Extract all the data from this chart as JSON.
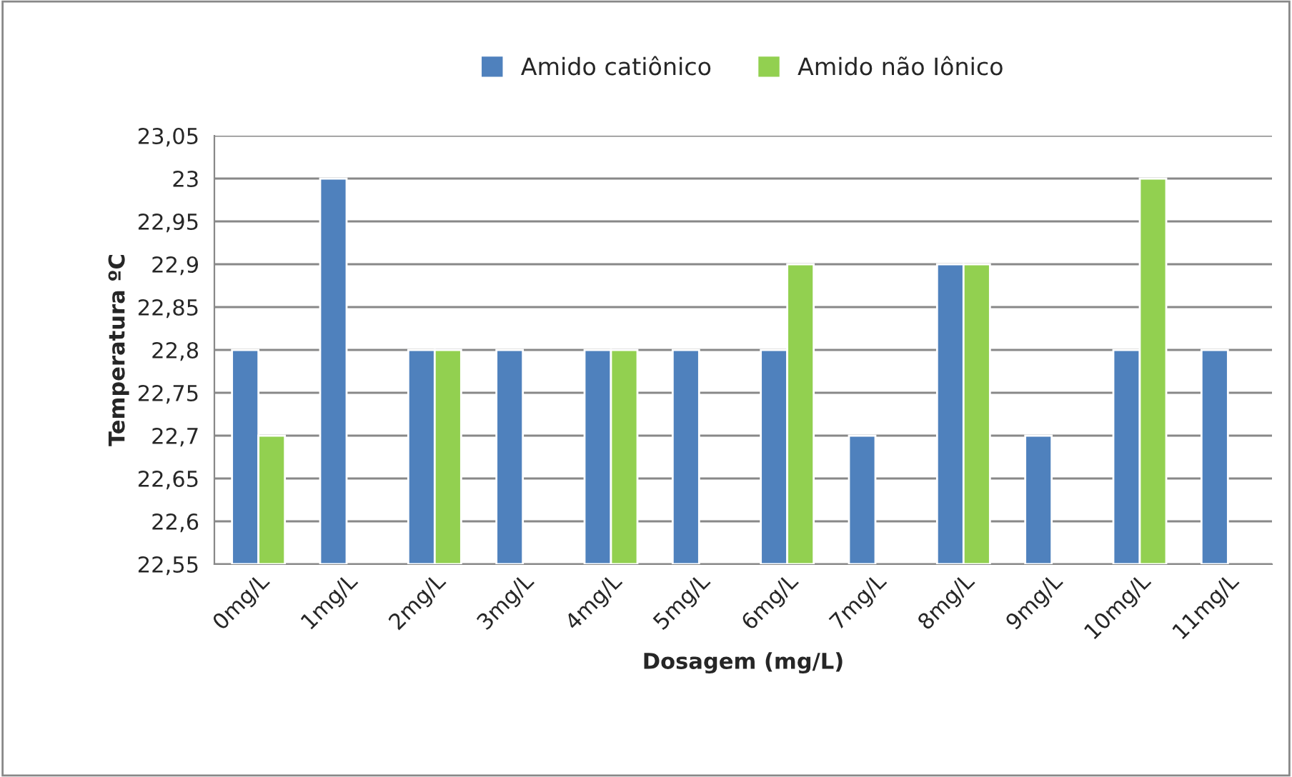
{
  "chart_data": {
    "type": "bar",
    "xlabel": "Dosagem (mg/L)",
    "ylabel": "Temperatura ºC",
    "categories": [
      "0mg/L",
      "1mg/L",
      "2mg/L",
      "3mg/L",
      "4mg/L",
      "5mg/L",
      "6mg/L",
      "7mg/L",
      "8mg/L",
      "9mg/L",
      "10mg/L",
      "11mg/L"
    ],
    "series": [
      {
        "name": "Amido catiônico",
        "color": "#4f81bd",
        "values": [
          22.8,
          23,
          22.8,
          22.8,
          22.8,
          22.8,
          22.8,
          22.7,
          22.9,
          22.7,
          22.8,
          22.8
        ]
      },
      {
        "name": "Amido não Iônico",
        "color": "#92d050",
        "values": [
          22.7,
          null,
          22.8,
          null,
          22.8,
          null,
          22.9,
          null,
          22.9,
          null,
          23,
          null
        ]
      }
    ],
    "ylim": [
      22.55,
      23.05
    ],
    "yticks": [
      {
        "value": 22.55,
        "label": "22,55"
      },
      {
        "value": 22.6,
        "label": "22,6"
      },
      {
        "value": 22.65,
        "label": "22,65"
      },
      {
        "value": 22.7,
        "label": "22,7"
      },
      {
        "value": 22.75,
        "label": "22,75"
      },
      {
        "value": 22.8,
        "label": "22,8"
      },
      {
        "value": 22.85,
        "label": "22,85"
      },
      {
        "value": 22.9,
        "label": "22,9"
      },
      {
        "value": 22.95,
        "label": "22,95"
      },
      {
        "value": 23,
        "label": "23"
      },
      {
        "value": 23.05,
        "label": "23,05"
      }
    ],
    "grid": "y",
    "legend": "top"
  }
}
